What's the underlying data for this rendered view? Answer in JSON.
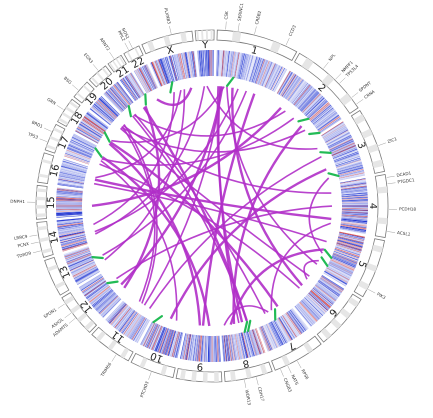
{
  "diagram": {
    "type": "circos",
    "colors": {
      "link": "#b02fc8",
      "marker": "#22bb55",
      "heat_high": "#1a2fd0",
      "heat_low": "#d03030",
      "ideogram_band": "#e6e6e6",
      "ideogram_stroke": "#7a7a7a"
    },
    "chromosomes": [
      {
        "label": "1",
        "size": 249
      },
      {
        "label": "2",
        "size": 242
      },
      {
        "label": "3",
        "size": 198
      },
      {
        "label": "4",
        "size": 190
      },
      {
        "label": "5",
        "size": 181
      },
      {
        "label": "6",
        "size": 171
      },
      {
        "label": "7",
        "size": 159
      },
      {
        "label": "8",
        "size": 145
      },
      {
        "label": "9",
        "size": 138
      },
      {
        "label": "10",
        "size": 134
      },
      {
        "label": "11",
        "size": 135
      },
      {
        "label": "12",
        "size": 133
      },
      {
        "label": "13",
        "size": 114
      },
      {
        "label": "14",
        "size": 107
      },
      {
        "label": "15",
        "size": 102
      },
      {
        "label": "16",
        "size": 90
      },
      {
        "label": "17",
        "size": 83
      },
      {
        "label": "18",
        "size": 80
      },
      {
        "label": "19",
        "size": 59
      },
      {
        "label": "20",
        "size": 64
      },
      {
        "label": "21",
        "size": 47
      },
      {
        "label": "22",
        "size": 51
      },
      {
        "label": "X",
        "size": 156
      },
      {
        "label": "Y",
        "size": 57
      }
    ],
    "gene_labels": [
      {
        "text": "CSK",
        "chr": "1",
        "pos": 0.1
      },
      {
        "text": "SERINC1",
        "chr": "1",
        "pos": 0.25
      },
      {
        "text": "CREB2",
        "chr": "1",
        "pos": 0.45
      },
      {
        "text": "CCD3",
        "chr": "1",
        "pos": 0.85
      },
      {
        "text": "NPL",
        "chr": "2",
        "pos": 0.35
      },
      {
        "text": "NMPF1",
        "chr": "2",
        "pos": 0.55
      },
      {
        "text": "TP53L4",
        "chr": "2",
        "pos": 0.62
      },
      {
        "text": "SPDNT",
        "chr": "2",
        "pos": 0.85
      },
      {
        "text": "CRNA",
        "chr": "2",
        "pos": 0.95
      },
      {
        "text": "ZIC1",
        "chr": "3",
        "pos": 0.6
      },
      {
        "text": "DCAD1",
        "chr": "4",
        "pos": 0.05
      },
      {
        "text": "PTGDC1",
        "chr": "4",
        "pos": 0.15
      },
      {
        "text": "PCDH18",
        "chr": "4",
        "pos": 0.55
      },
      {
        "text": "ACSL1",
        "chr": "4",
        "pos": 0.9
      },
      {
        "text": "PIK3",
        "chr": "5",
        "pos": 0.85
      },
      {
        "text": "RPS6",
        "chr": "7",
        "pos": 0.55
      },
      {
        "text": "NAT6",
        "chr": "7",
        "pos": 0.75
      },
      {
        "text": "CNGB3",
        "chr": "7",
        "pos": 0.9
      },
      {
        "text": "CDH17",
        "chr": "8",
        "pos": 0.35
      },
      {
        "text": "WDR13",
        "chr": "8",
        "pos": 0.6
      },
      {
        "text": "PTCHD3",
        "chr": "10",
        "pos": 0.5
      },
      {
        "text": "TRIM66",
        "chr": "11",
        "pos": 0.3
      },
      {
        "text": "ADAMTS",
        "chr": "12",
        "pos": 0.45
      },
      {
        "text": "ASH2L",
        "chr": "12",
        "pos": 0.6
      },
      {
        "text": "SPON1",
        "chr": "12",
        "pos": 0.85
      },
      {
        "text": "TDRD9",
        "chr": "14",
        "pos": 0.2
      },
      {
        "text": "PCNX",
        "chr": "14",
        "pos": 0.45
      },
      {
        "text": "LRRC9",
        "chr": "14",
        "pos": 0.65
      },
      {
        "text": "DNPH1",
        "chr": "15",
        "pos": 0.5
      },
      {
        "text": "TP53",
        "chr": "17",
        "pos": 0.3
      },
      {
        "text": "BRD1",
        "chr": "17",
        "pos": 0.7
      },
      {
        "text": "GRN",
        "chr": "18",
        "pos": 0.5
      },
      {
        "text": "BSG",
        "chr": "19",
        "pos": 0.4
      },
      {
        "text": "EGR3",
        "chr": "20",
        "pos": 0.6
      },
      {
        "text": "ARNT2",
        "chr": "21",
        "pos": 0.5
      },
      {
        "text": "PPIL2",
        "chr": "22",
        "pos": 0.35
      },
      {
        "text": "NOS1",
        "chr": "22",
        "pos": 0.6
      },
      {
        "text": "PLXNB3",
        "chr": "X",
        "pos": 0.6
      }
    ],
    "links": [
      [
        "1",
        0.05,
        "8",
        0.35
      ],
      [
        "1",
        0.08,
        "8",
        0.45
      ],
      [
        "1",
        0.1,
        "11",
        0.4
      ],
      [
        "1",
        0.12,
        "12",
        0.35
      ],
      [
        "1",
        0.15,
        "18",
        0.5
      ],
      [
        "1",
        0.2,
        "5",
        0.9
      ],
      [
        "1",
        0.3,
        "6",
        0.5
      ],
      [
        "1",
        0.4,
        "14",
        0.4
      ],
      [
        "1",
        0.55,
        "13",
        0.5
      ],
      [
        "1",
        0.7,
        "9",
        0.5
      ],
      [
        "2",
        0.3,
        "20",
        0.5
      ],
      [
        "2",
        0.5,
        "17",
        0.5
      ],
      [
        "2",
        0.7,
        "8",
        0.6
      ],
      [
        "2",
        0.8,
        "19",
        0.4
      ],
      [
        "3",
        0.4,
        "11",
        0.2
      ],
      [
        "3",
        0.7,
        "10",
        0.5
      ],
      [
        "4",
        0.2,
        "19",
        0.6
      ],
      [
        "4",
        0.5,
        "12",
        0.6
      ],
      [
        "4",
        0.8,
        "16",
        0.5
      ],
      [
        "4",
        0.9,
        "7",
        0.5
      ],
      [
        "5",
        0.3,
        "16",
        0.3
      ],
      [
        "5",
        0.5,
        "8",
        0.7
      ],
      [
        "5",
        0.8,
        "6",
        0.3
      ],
      [
        "6",
        0.2,
        "19",
        0.3
      ],
      [
        "7",
        0.3,
        "18",
        0.4
      ],
      [
        "7",
        0.6,
        "8",
        0.9
      ],
      [
        "8",
        0.2,
        "20",
        0.4
      ],
      [
        "9",
        0.3,
        "17",
        0.6
      ],
      [
        "10",
        0.3,
        "17",
        0.4
      ],
      [
        "11",
        0.6,
        "19",
        0.5
      ],
      [
        "12",
        0.2,
        "21",
        0.5
      ],
      [
        "13",
        0.3,
        "X",
        0.6
      ],
      [
        "14",
        0.7,
        "X",
        0.3
      ],
      [
        "15",
        0.4,
        "2",
        0.2
      ],
      [
        "16",
        0.6,
        "X",
        0.5
      ],
      [
        "17",
        0.2,
        "6",
        0.6
      ],
      [
        "18",
        0.3,
        "9",
        0.6
      ],
      [
        "19",
        0.7,
        "11",
        0.5
      ],
      [
        "20",
        0.6,
        "7",
        0.7
      ],
      [
        "22",
        0.5,
        "X",
        0.8
      ],
      [
        "3",
        0.2,
        "Y",
        0.5
      ],
      [
        "Y",
        0.3,
        "14",
        0.3
      ],
      [
        "21",
        0.3,
        "8",
        0.2
      ],
      [
        "5",
        0.6,
        "3",
        0.9
      ]
    ],
    "markers": [
      [
        "1",
        0.2
      ],
      [
        "2",
        0.9
      ],
      [
        "3",
        0.3
      ],
      [
        "3",
        0.8
      ],
      [
        "5",
        0.5
      ],
      [
        "5",
        0.7
      ],
      [
        "7",
        0.4
      ],
      [
        "8",
        0.1
      ],
      [
        "8",
        0.2
      ],
      [
        "10",
        0.8
      ],
      [
        "12",
        0.5
      ],
      [
        "13",
        0.4
      ],
      [
        "17",
        0.6
      ],
      [
        "18",
        0.4
      ],
      [
        "20",
        0.3
      ],
      [
        "21",
        0.6
      ],
      [
        "X",
        0.2
      ],
      [
        "2",
        0.6
      ]
    ]
  }
}
